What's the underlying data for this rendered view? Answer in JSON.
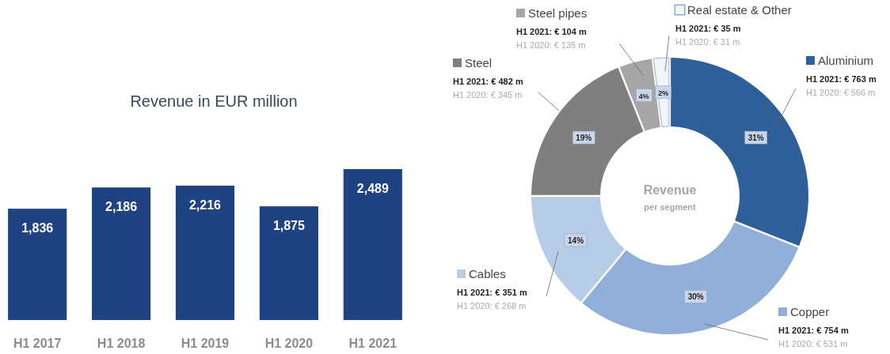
{
  "chart_data": [
    {
      "type": "bar",
      "title": "Revenue in EUR million",
      "categories": [
        "H1 2017",
        "H1 2018",
        "H1 2019",
        "H1 2020",
        "H1 2021"
      ],
      "values": [
        1836,
        2186,
        2216,
        1875,
        2489
      ],
      "color": "#1f4283",
      "data_labels": true,
      "value_labels": [
        "1,836",
        "2,186",
        "2,216",
        "1,875",
        "2,489"
      ]
    },
    {
      "type": "donut",
      "title": "Revenue",
      "subtitle": "per segment",
      "categories": [
        "Aluminium",
        "Copper",
        "Cables",
        "Steel",
        "Steel pipes",
        "Real estate & Other"
      ],
      "values": [
        31,
        30,
        14,
        19,
        4,
        2
      ],
      "colors": [
        "#2f5f98",
        "#91afd8",
        "#b7cce6",
        "#7f7f7f",
        "#a6a6a6",
        "#f2f6fb"
      ],
      "value_labels": [
        "31%",
        "30%",
        "14%",
        "19%",
        "4%",
        "2%"
      ],
      "legend": "top",
      "annotations": [
        "H1 2021: € 763 m",
        "H1 2020: € 566 m",
        "H1 2021: € 754 m",
        "H1 2020: € 531 m",
        "H1 2021: € 351 m",
        "H1 2020: € 268 m",
        "H1 2021: € 482 m",
        "H1 2020: € 345 m",
        "H1 2021: € 104 m",
        "H1 2020: € 135 m",
        "H1 2021: € 35 m",
        "H1 2020: € 31 m"
      ]
    }
  ]
}
